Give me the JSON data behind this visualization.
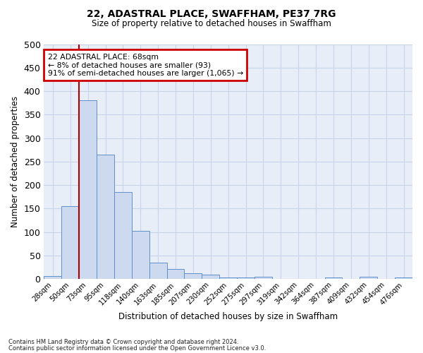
{
  "title1": "22, ADASTRAL PLACE, SWAFFHAM, PE37 7RG",
  "title2": "Size of property relative to detached houses in Swaffham",
  "xlabel": "Distribution of detached houses by size in Swaffham",
  "ylabel": "Number of detached properties",
  "footnote1": "Contains HM Land Registry data © Crown copyright and database right 2024.",
  "footnote2": "Contains public sector information licensed under the Open Government Licence v3.0.",
  "bin_labels": [
    "28sqm",
    "50sqm",
    "73sqm",
    "95sqm",
    "118sqm",
    "140sqm",
    "163sqm",
    "185sqm",
    "207sqm",
    "230sqm",
    "252sqm",
    "275sqm",
    "297sqm",
    "319sqm",
    "342sqm",
    "364sqm",
    "387sqm",
    "409sqm",
    "432sqm",
    "454sqm",
    "476sqm"
  ],
  "bar_values": [
    7,
    155,
    380,
    265,
    185,
    102,
    35,
    22,
    12,
    10,
    4,
    3,
    5,
    0,
    0,
    0,
    4,
    0,
    5,
    0,
    3
  ],
  "bar_color": "#ccd9ee",
  "bar_edge_color": "#6090cc",
  "vline_index": 2,
  "vline_color": "#aa0000",
  "annotation_text": "22 ADASTRAL PLACE: 68sqm\n← 8% of detached houses are smaller (93)\n91% of semi-detached houses are larger (1,065) →",
  "annotation_box_color": "#cc0000",
  "ylim": [
    0,
    500
  ],
  "yticks": [
    0,
    50,
    100,
    150,
    200,
    250,
    300,
    350,
    400,
    450,
    500
  ],
  "grid_color": "#c8d4e8",
  "background_color": "#e8eef8"
}
